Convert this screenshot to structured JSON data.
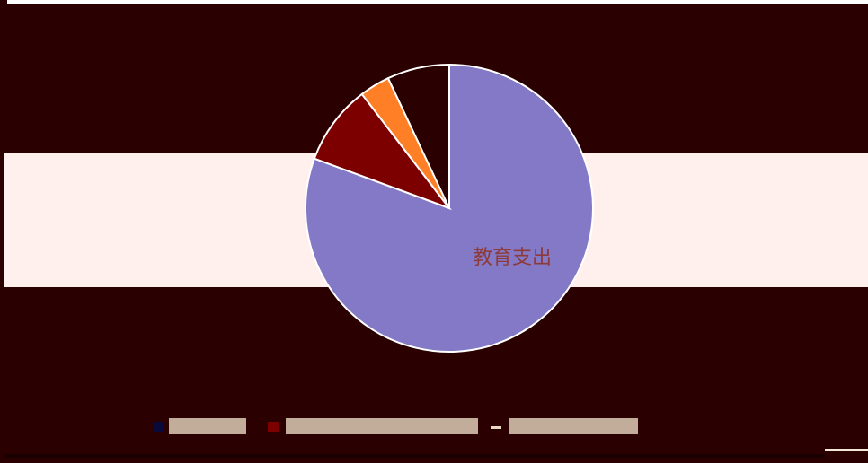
{
  "chart_data": {
    "type": "pie",
    "title": "",
    "slices": [
      {
        "label": "教育支出",
        "value": 80.7,
        "color": "#8479c6"
      },
      {
        "label": "",
        "value": 9.0,
        "color": "#7d0000"
      },
      {
        "label": "",
        "value": 3.4,
        "color": "#ff7f27"
      },
      {
        "label": "",
        "value": 7.0,
        "color": "#2a0000"
      }
    ],
    "legend_position": "bottom",
    "value_unit": "%"
  },
  "colors": {
    "background": "#2a0000",
    "band": "#fff0ee",
    "label_text": "#8c3a3a"
  }
}
